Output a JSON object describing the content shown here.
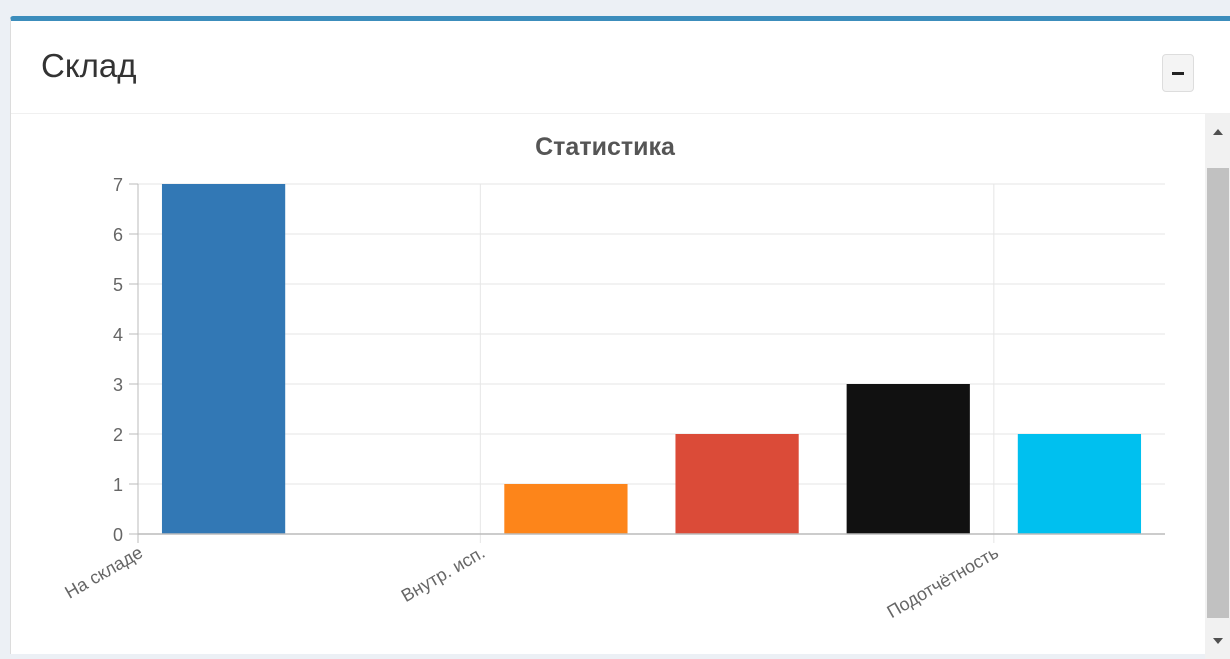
{
  "panel": {
    "title": "Склад"
  },
  "chart_data": {
    "type": "bar",
    "title": "Статистика",
    "categories": [
      "На складе",
      "",
      "Внутр. исп.",
      "",
      "",
      "Подотчётность"
    ],
    "values": [
      7,
      0,
      1,
      2,
      3,
      2
    ],
    "colors": [
      "#3278b5",
      "#3278b5",
      "#fd851a",
      "#db4b38",
      "#111111",
      "#00c0ef"
    ],
    "ylim": [
      0,
      7
    ],
    "yticks": [
      0,
      1,
      2,
      3,
      4,
      5,
      6,
      7
    ],
    "grid": true,
    "xlabel": "",
    "ylabel": ""
  }
}
